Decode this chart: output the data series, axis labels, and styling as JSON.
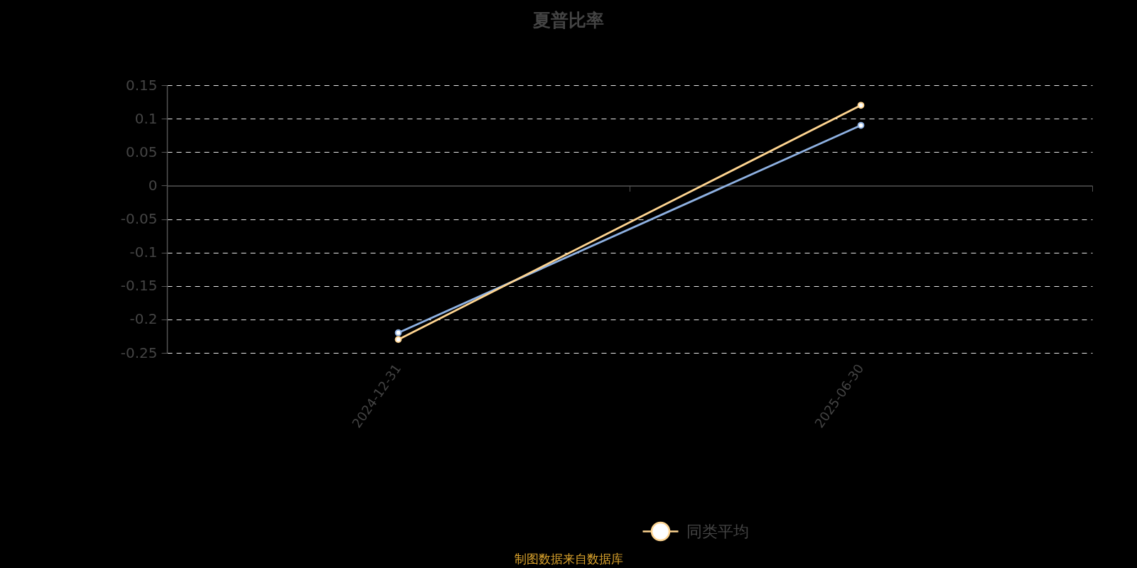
{
  "chart_data": {
    "type": "line",
    "title": "夏普比率",
    "categories": [
      "2024-12-31",
      "2025-06-30"
    ],
    "series": [
      {
        "color": "#8eb1e2",
        "values": [
          -0.22,
          0.09
        ]
      },
      {
        "name": "同类平均",
        "color": "#ffd591",
        "values": [
          -0.23,
          0.12
        ]
      }
    ],
    "ylim": [
      -0.25,
      0.15
    ],
    "yticks": [
      -0.25,
      -0.2,
      -0.15,
      -0.1,
      -0.05,
      0,
      0.05,
      0.1,
      0.15
    ],
    "grid": "y",
    "legend": "bottom",
    "marker": "circle",
    "annotations": [
      "制图数据来自数据库"
    ]
  }
}
